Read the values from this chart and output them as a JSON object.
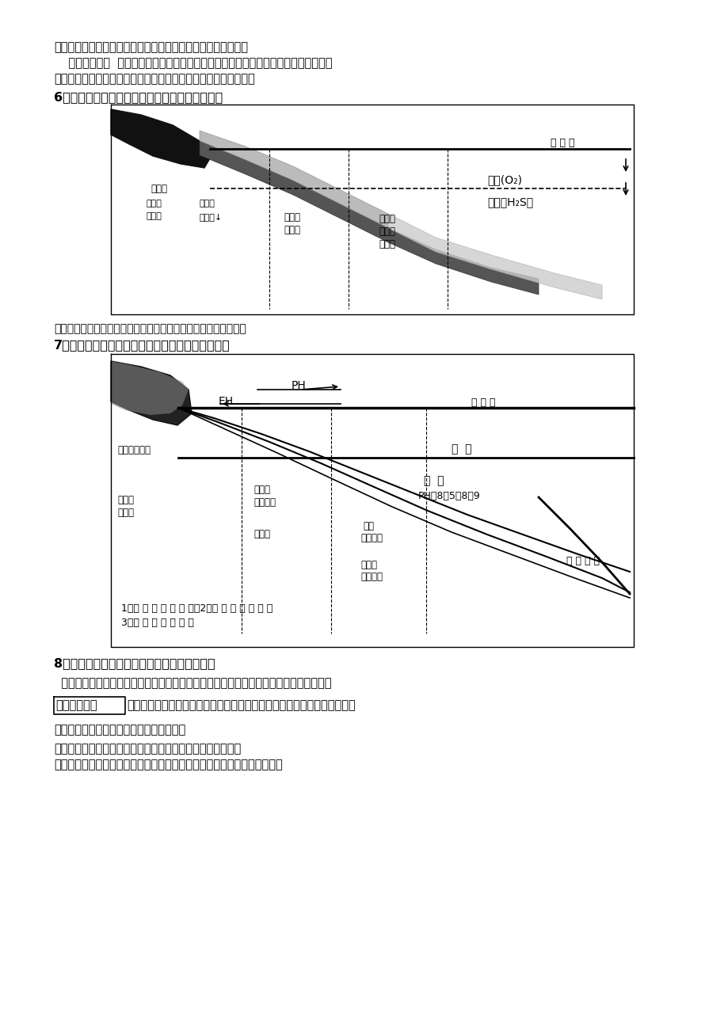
{
  "page_bg": "#ffffff",
  "top_text_lines": [
    "矿；潮下深水相；盐类：陆相碎屑岩、海相碎屑岩、碳酸盐岩系",
    "    地质构造条件  大多产生于地台区的沉积盖层；地槽带细碧角斑岩系中铜矿、火山岩系",
    "中的铁矿床和重晶石矿床。地槽带内的断陷盆地中常产有盐类矿床"
  ],
  "q6_title": "6、画图简要说明胶体化学沉积铁矿的矿物相分带",
  "q6_answer_text": "氧化矿物相带；硅酸盐矿物相带；碳酸盐矿物相带；硫化物相带；",
  "q7_title": "7、画图简要说明胶体化学沉积锰矿的矿物相分带。",
  "q8_title": "8、举例说明沉积矿床的主要类型和矿产种类。",
  "q8_body_line1": "  根据成矿物质物理化学特点、成矿物质来源和成矿作用的地质特征，可以分为以下四种：",
  "box_text": "机械沉积矿床",
  "q8_rest": "也称砂矿床，指地表碎屑物通过水等地质营力被搬运时，按体积和比重分别",
  "q8_line3": "沉积下来，使有用物质富集而形成的矿床。",
  "q8_line4": "矿种：非常多，以金、铂、金刚石、锡、钛、锆等最为重要。",
  "q8_line5": "现代砂矿和古代砂矿（阿扎尼亚维特瓦特斯兰德元古代变质金铀砾岩矿床）"
}
